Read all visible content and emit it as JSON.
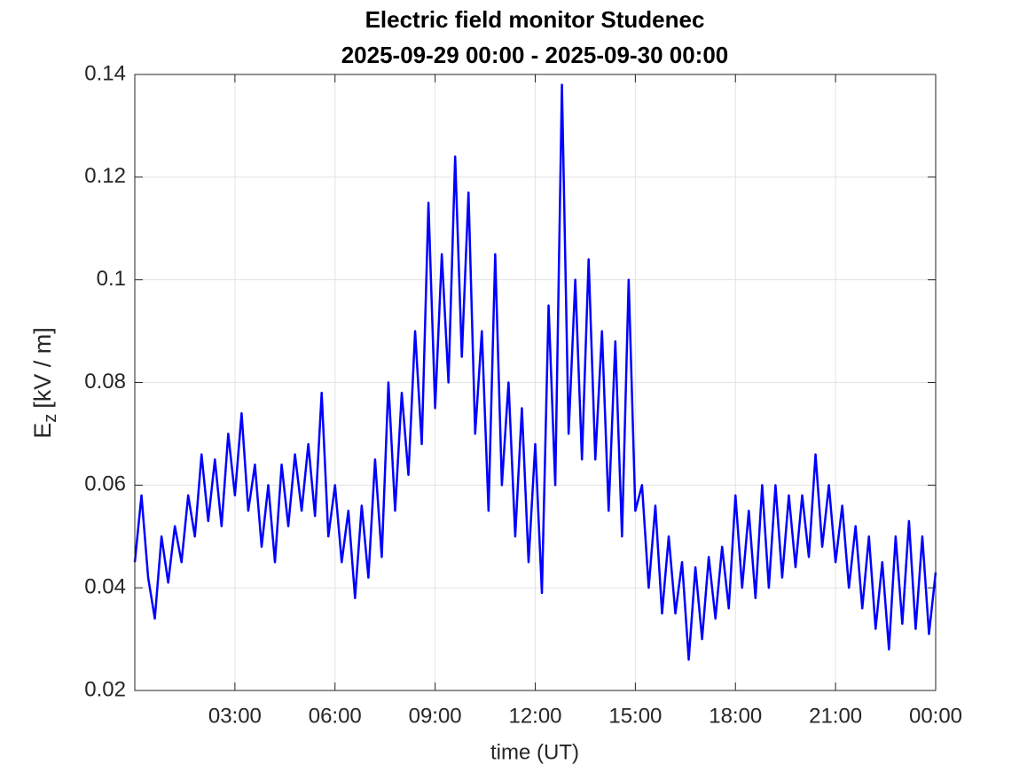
{
  "chart_data": {
    "type": "line",
    "title": "Electric field monitor Studenec",
    "subtitle": "2025-09-29 00:00 - 2025-09-30 00:00",
    "x_label": "time (UT)",
    "y_label": "E",
    "y_label_sub": "z",
    "y_label_unit": "[kV / m]",
    "xlim": [
      0,
      24
    ],
    "xticks": [
      {
        "value": 3,
        "label": "03:00"
      },
      {
        "value": 6,
        "label": "06:00"
      },
      {
        "value": 9,
        "label": "09:00"
      },
      {
        "value": 12,
        "label": "12:00"
      },
      {
        "value": 15,
        "label": "15:00"
      },
      {
        "value": 18,
        "label": "18:00"
      },
      {
        "value": 21,
        "label": "21:00"
      },
      {
        "value": 24,
        "label": "00:00"
      }
    ],
    "ylim": [
      0.02,
      0.14
    ],
    "yticks": [
      0.02,
      0.04,
      0.06,
      0.08,
      0.1,
      0.12,
      0.14
    ],
    "grid": true,
    "x": [
      0,
      0.2,
      0.4,
      0.6,
      0.8,
      1,
      1.2,
      1.4,
      1.6,
      1.8,
      2,
      2.2,
      2.4,
      2.6,
      2.8,
      3,
      3.2,
      3.4,
      3.6,
      3.8,
      4,
      4.2,
      4.4,
      4.6,
      4.8,
      5,
      5.2,
      5.4,
      5.6,
      5.8,
      6,
      6.2,
      6.4,
      6.6,
      6.8,
      7,
      7.2,
      7.4,
      7.6,
      7.8,
      8,
      8.2,
      8.4,
      8.6,
      8.8,
      9,
      9.2,
      9.4,
      9.6,
      9.8,
      10,
      10.2,
      10.4,
      10.6,
      10.8,
      11,
      11.2,
      11.4,
      11.6,
      11.8,
      12,
      12.2,
      12.4,
      12.6,
      12.8,
      13,
      13.2,
      13.4,
      13.6,
      13.8,
      14,
      14.2,
      14.4,
      14.6,
      14.8,
      15,
      15.2,
      15.4,
      15.6,
      15.8,
      16,
      16.2,
      16.4,
      16.6,
      16.8,
      17,
      17.2,
      17.4,
      17.6,
      17.8,
      18,
      18.2,
      18.4,
      18.6,
      18.8,
      19,
      19.2,
      19.4,
      19.6,
      19.8,
      20,
      20.2,
      20.4,
      20.6,
      20.8,
      21,
      21.2,
      21.4,
      21.6,
      21.8,
      22,
      22.2,
      22.4,
      22.6,
      22.8,
      23,
      23.2,
      23.4,
      23.6,
      23.8,
      24
    ],
    "series": [
      {
        "color": "#0000ff",
        "values": [
          0.045,
          0.058,
          0.042,
          0.034,
          0.05,
          0.041,
          0.052,
          0.045,
          0.058,
          0.05,
          0.066,
          0.053,
          0.065,
          0.052,
          0.07,
          0.058,
          0.074,
          0.055,
          0.064,
          0.048,
          0.06,
          0.045,
          0.064,
          0.052,
          0.066,
          0.055,
          0.068,
          0.054,
          0.078,
          0.05,
          0.06,
          0.045,
          0.055,
          0.038,
          0.056,
          0.042,
          0.065,
          0.046,
          0.08,
          0.055,
          0.078,
          0.062,
          0.09,
          0.068,
          0.115,
          0.075,
          0.105,
          0.08,
          0.124,
          0.085,
          0.117,
          0.07,
          0.09,
          0.055,
          0.105,
          0.06,
          0.08,
          0.05,
          0.075,
          0.045,
          0.068,
          0.039,
          0.095,
          0.06,
          0.138,
          0.07,
          0.1,
          0.065,
          0.104,
          0.065,
          0.09,
          0.055,
          0.088,
          0.05,
          0.1,
          0.055,
          0.06,
          0.04,
          0.056,
          0.035,
          0.05,
          0.035,
          0.045,
          0.026,
          0.044,
          0.03,
          0.046,
          0.034,
          0.048,
          0.036,
          0.058,
          0.04,
          0.055,
          0.038,
          0.06,
          0.04,
          0.06,
          0.042,
          0.058,
          0.044,
          0.058,
          0.046,
          0.066,
          0.048,
          0.06,
          0.045,
          0.056,
          0.04,
          0.052,
          0.036,
          0.05,
          0.032,
          0.045,
          0.028,
          0.05,
          0.033,
          0.053,
          0.032,
          0.05,
          0.031,
          0.043
        ]
      }
    ]
  }
}
